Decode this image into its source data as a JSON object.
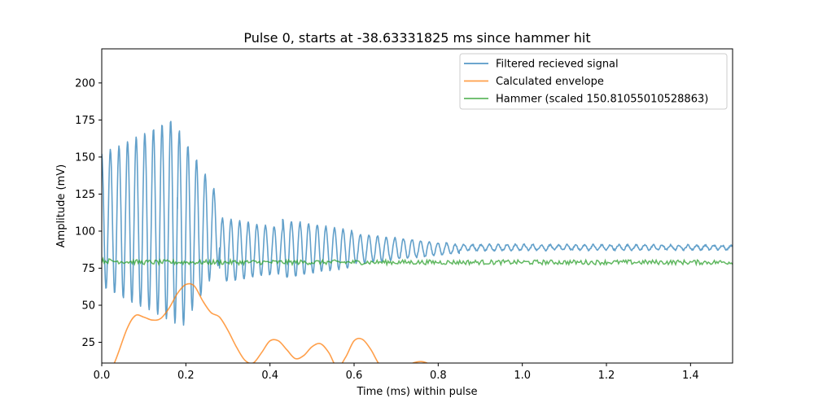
{
  "chart_data": {
    "type": "line",
    "title": "Pulse 0, starts at -38.63331825 ms since hammer hit",
    "xlabel": "Time (ms) within pulse",
    "ylabel": "Amplitude (mV)",
    "xlim": [
      0.0,
      1.5
    ],
    "ylim": [
      11,
      223
    ],
    "xticks": [
      0.0,
      0.2,
      0.4,
      0.6,
      0.8,
      1.0,
      1.2,
      1.4
    ],
    "xtick_labels": [
      "0.0",
      "0.2",
      "0.4",
      "0.6",
      "0.8",
      "1.0",
      "1.2",
      "1.4"
    ],
    "yticks": [
      25,
      50,
      75,
      100,
      125,
      150,
      175,
      200
    ],
    "ytick_labels": [
      "25",
      "50",
      "75",
      "100",
      "125",
      "150",
      "175",
      "200"
    ],
    "grid": false,
    "legend_position": "top-right",
    "series": [
      {
        "name": "Filtered recieved signal",
        "color": "#1f77b4",
        "segments": [
          {
            "t0": 0.0,
            "t1": 0.18,
            "period": 0.0205,
            "center": 107,
            "amp_start": 45,
            "amp_end": 70
          },
          {
            "t0": 0.18,
            "t1": 0.28,
            "period": 0.0205,
            "center": 100,
            "amp_start": 70,
            "amp_end": 22
          },
          {
            "t0": 0.28,
            "t1": 0.43,
            "period": 0.0205,
            "center": 87,
            "amp_start": 22,
            "amp_end": 15
          },
          {
            "t0": 0.43,
            "t1": 0.6,
            "period": 0.0205,
            "center": 88,
            "amp_start": 20,
            "amp_end": 12
          },
          {
            "t0": 0.6,
            "t1": 0.85,
            "period": 0.0205,
            "center": 88,
            "amp_start": 10,
            "amp_end": 3
          },
          {
            "t0": 0.85,
            "t1": 1.5,
            "period": 0.0205,
            "center": 89,
            "amp_start": 2,
            "amp_end": 1.5
          }
        ]
      },
      {
        "name": "Calculated envelope",
        "color": "#ff7f0e",
        "x": [
          0.0,
          0.03,
          0.06,
          0.08,
          0.1,
          0.12,
          0.14,
          0.16,
          0.18,
          0.2,
          0.22,
          0.24,
          0.26,
          0.28,
          0.3,
          0.32,
          0.34,
          0.36,
          0.38,
          0.4,
          0.42,
          0.44,
          0.46,
          0.48,
          0.5,
          0.52,
          0.54,
          0.56,
          0.58,
          0.6,
          0.62,
          0.64,
          0.66,
          0.68,
          0.7,
          0.72,
          0.74,
          0.76,
          0.78,
          0.8
        ],
        "y": [
          -5,
          11,
          34,
          43,
          42,
          40,
          41,
          48,
          58,
          64,
          63,
          53,
          45,
          42,
          33,
          22,
          13,
          11,
          18,
          26,
          26,
          20,
          14,
          16,
          22,
          24,
          18,
          8,
          15,
          26,
          27,
          20,
          10,
          5,
          5,
          8,
          11,
          12,
          10,
          5
        ]
      },
      {
        "name": "Hammer (scaled 150.81055010528863)",
        "color": "#2ca02c",
        "x": [
          0.0,
          0.1,
          0.2,
          0.3,
          0.4,
          0.5,
          0.6,
          0.7,
          0.8,
          0.9,
          1.0,
          1.1,
          1.2,
          1.3,
          1.4,
          1.5
        ],
        "y": [
          80,
          79,
          79,
          79,
          79,
          79,
          79,
          79,
          79,
          79,
          79,
          79,
          79,
          79,
          79,
          79
        ]
      }
    ]
  }
}
